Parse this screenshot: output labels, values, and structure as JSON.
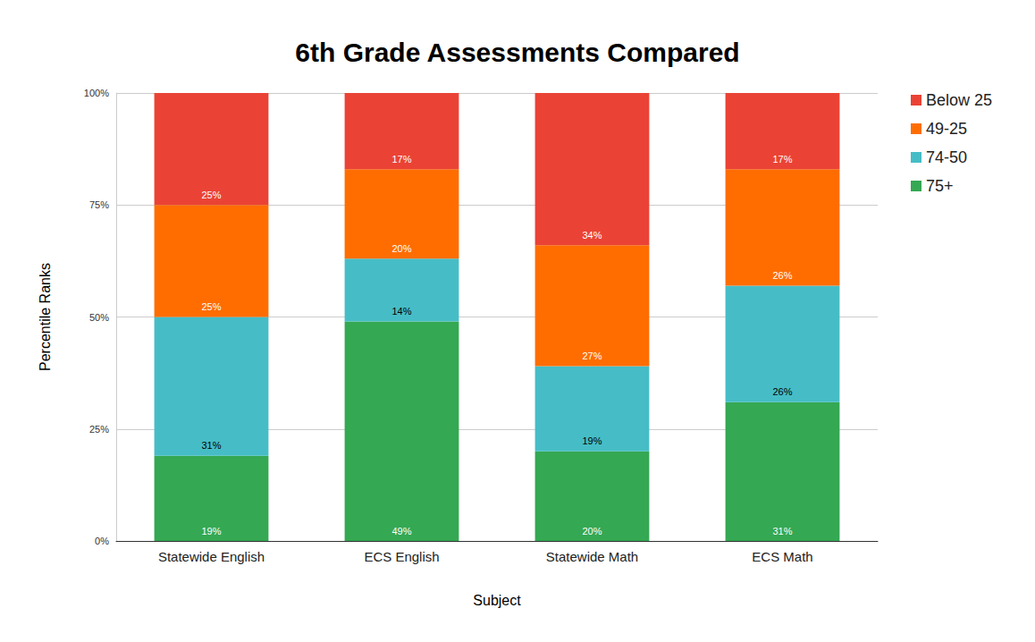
{
  "chart_data": {
    "type": "bar",
    "title": "6th Grade Assessments Compared",
    "x_label": "Subject",
    "y_label": "Percentile Ranks",
    "categories": [
      "Statewide English",
      "ECS English",
      "Statewide Math",
      "ECS Math"
    ],
    "series": [
      {
        "name": "75+",
        "color": "#34a853",
        "values": [
          19,
          49,
          20,
          31
        ],
        "value_labels": [
          "19%",
          "49%",
          "20%",
          "31%"
        ]
      },
      {
        "name": "74-50",
        "color": "#46bdc6",
        "values": [
          31,
          14,
          19,
          26
        ],
        "value_labels": [
          "31%",
          "14%",
          "19%",
          "26%"
        ]
      },
      {
        "name": "49-25",
        "color": "#ff6d01",
        "values": [
          25,
          20,
          27,
          26
        ],
        "value_labels": [
          "25%",
          "20%",
          "27%",
          "26%"
        ]
      },
      {
        "name": "Below 25",
        "color": "#ea4335",
        "values": [
          25,
          17,
          34,
          17
        ],
        "value_labels": [
          "25%",
          "17%",
          "34%",
          "17%"
        ]
      }
    ],
    "ylim": [
      0,
      100
    ],
    "yticks": [
      {
        "value": 0,
        "label": "0%"
      },
      {
        "value": 25,
        "label": "25%"
      },
      {
        "value": 50,
        "label": "50%"
      },
      {
        "value": 75,
        "label": "75%"
      },
      {
        "value": 100,
        "label": "100%"
      }
    ],
    "stacked": true,
    "data_labels": true,
    "grid": true,
    "legend": "right"
  }
}
